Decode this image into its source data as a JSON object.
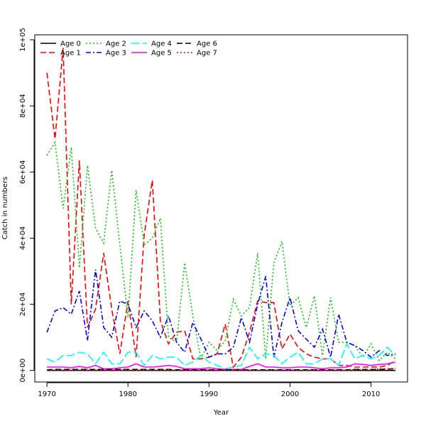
{
  "chart_data": {
    "type": "line",
    "title": "",
    "xlabel": "Year",
    "ylabel": "Catch in numbers",
    "xlim": [
      1968.5,
      2014.5
    ],
    "ylim": [
      -3500,
      101500
    ],
    "x_ticks": [
      1970,
      1980,
      1990,
      2000,
      2010
    ],
    "x_tick_labels": [
      "1970",
      "1980",
      "1990",
      "2000",
      "2010"
    ],
    "y_ticks": [
      0,
      20000,
      40000,
      60000,
      80000,
      100000
    ],
    "y_tick_labels": [
      "0e+00",
      "2e+04",
      "4e+04",
      "6e+04",
      "8e+04",
      "1e+05"
    ],
    "grid": false,
    "legend_position": "top-left",
    "x": [
      1970,
      1971,
      1972,
      1973,
      1974,
      1975,
      1976,
      1977,
      1978,
      1979,
      1980,
      1981,
      1982,
      1983,
      1984,
      1985,
      1986,
      1987,
      1988,
      1989,
      1990,
      1991,
      1992,
      1993,
      1994,
      1995,
      1996,
      1997,
      1998,
      1999,
      2000,
      2001,
      2002,
      2003,
      2004,
      2005,
      2006,
      2007,
      2008,
      2009,
      2010,
      2011,
      2012,
      2013
    ],
    "series": [
      {
        "name": "Age 0",
        "color": "#000000",
        "dash": "solid",
        "values": [
          0,
          0,
          0,
          0,
          0,
          0,
          0,
          0,
          0,
          0,
          0,
          0,
          0,
          0,
          0,
          0,
          0,
          0,
          0,
          0,
          0,
          0,
          0,
          0,
          0,
          0,
          0,
          0,
          0,
          0,
          0,
          0,
          0,
          0,
          0,
          0,
          0,
          0,
          0,
          0,
          0,
          0,
          0,
          0
        ]
      },
      {
        "name": "Age 1",
        "color": "#ff0000",
        "dash": "dashed",
        "values": [
          90000,
          70000,
          97500,
          20000,
          63500,
          13000,
          18500,
          35500,
          18500,
          5000,
          21000,
          4000,
          41000,
          57500,
          15000,
          8000,
          11500,
          12000,
          3500,
          3500,
          4000,
          5000,
          14000,
          1000,
          4000,
          11500,
          21000,
          20500,
          20500,
          6500,
          11000,
          7000,
          5000,
          4000,
          3500,
          3500,
          1500,
          1500,
          1000,
          1000,
          1000,
          1000,
          1500,
          3000
        ]
      },
      {
        "name": "Age 2",
        "color": "#00cd00",
        "dash": "dotted",
        "values": [
          65000,
          69000,
          49000,
          67500,
          31000,
          62000,
          43000,
          38500,
          60500,
          38000,
          16000,
          54500,
          38000,
          40000,
          46000,
          10000,
          8500,
          32500,
          16500,
          3500,
          8500,
          6000,
          9000,
          21500,
          16500,
          19000,
          35500,
          3500,
          32500,
          39000,
          19500,
          22000,
          13000,
          22500,
          4500,
          22000,
          8500,
          8500,
          7500,
          4000,
          8000,
          3000,
          5500,
          3500
        ]
      },
      {
        "name": "Age 3",
        "color": "#0000ff",
        "dash": "dashdot",
        "values": [
          11500,
          18000,
          19000,
          17000,
          24000,
          9000,
          30500,
          13000,
          10000,
          21000,
          20000,
          13000,
          18000,
          15000,
          10000,
          16500,
          8500,
          5500,
          14500,
          9500,
          4000,
          5000,
          5000,
          7000,
          16000,
          8500,
          20000,
          28500,
          4000,
          14500,
          22000,
          12000,
          9500,
          7000,
          12500,
          4000,
          17000,
          8500,
          7500,
          6000,
          4000,
          6000,
          4500,
          5000
        ]
      },
      {
        "name": "Age 4",
        "color": "#00ffff",
        "dash": "longdash",
        "values": [
          3500,
          2500,
          4500,
          4500,
          5500,
          5000,
          2000,
          5500,
          2000,
          2000,
          5500,
          5500,
          1500,
          4500,
          3500,
          4000,
          4000,
          1500,
          2500,
          4500,
          2500,
          1500,
          500,
          1000,
          1500,
          7000,
          3500,
          5000,
          4500,
          2000,
          4000,
          5500,
          2000,
          2000,
          3500,
          3500,
          1500,
          8000,
          3500,
          4500,
          3500,
          4500,
          7000,
          4500
        ]
      },
      {
        "name": "Age 5",
        "color": "#ff00ff",
        "dash": "solid",
        "values": [
          1000,
          1000,
          1000,
          800,
          1200,
          800,
          1500,
          500,
          500,
          800,
          1000,
          2000,
          1000,
          1000,
          1200,
          1500,
          1200,
          500,
          500,
          500,
          800,
          500,
          300,
          300,
          300,
          1200,
          2000,
          1000,
          1000,
          800,
          800,
          1000,
          1000,
          800,
          500,
          800,
          800,
          1000,
          2000,
          1800,
          1500,
          1800,
          2000,
          2500
        ]
      },
      {
        "name": "Age 6",
        "color": "#000000",
        "dash": "dashed",
        "values": [
          200,
          300,
          300,
          300,
          300,
          300,
          300,
          300,
          300,
          300,
          300,
          300,
          300,
          300,
          300,
          300,
          200,
          200,
          200,
          200,
          200,
          200,
          200,
          200,
          200,
          200,
          200,
          200,
          200,
          200,
          200,
          200,
          200,
          200,
          200,
          200,
          200,
          200,
          300,
          300,
          300,
          300,
          400,
          500
        ]
      },
      {
        "name": "Age 7",
        "color": "#ff0000",
        "dash": "dotted",
        "values": [
          100,
          100,
          100,
          100,
          100,
          100,
          100,
          100,
          100,
          100,
          100,
          100,
          100,
          100,
          100,
          100,
          100,
          100,
          100,
          100,
          100,
          100,
          100,
          100,
          100,
          100,
          100,
          100,
          100,
          100,
          100,
          100,
          100,
          100,
          100,
          100,
          100,
          100,
          200,
          300,
          300,
          400,
          500,
          600
        ]
      }
    ]
  }
}
